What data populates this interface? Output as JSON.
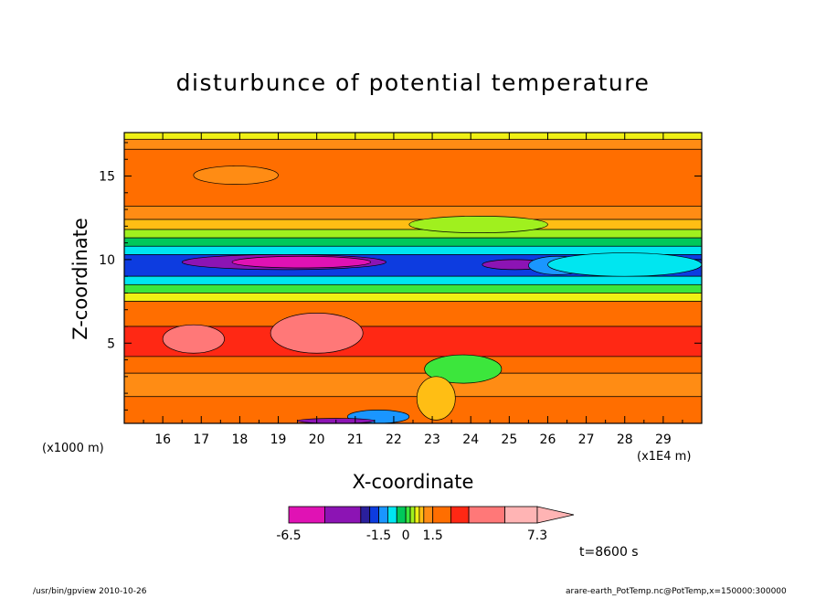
{
  "chart_data": {
    "type": "heatmap",
    "title": "disturbunce of potential temperature",
    "xlabel": "X-coordinate",
    "ylabel": "Z-coordinate",
    "x_unit_label": "(×1E4 m)",
    "z_unit_label": "(×1000 m)",
    "xlim": [
      15.0,
      30.0
    ],
    "ylim": [
      0.2,
      17.6
    ],
    "x_ticks": [
      16,
      17,
      18,
      19,
      20,
      21,
      22,
      23,
      24,
      25,
      26,
      27,
      28,
      29
    ],
    "y_ticks": [
      5,
      10,
      15
    ],
    "colorbar": {
      "labels": [
        "-6.5",
        "-1.5",
        "0",
        "1.5",
        "7.3"
      ],
      "label_values": [
        -6.5,
        -1.5,
        0,
        1.5,
        7.3
      ],
      "boundaries": [
        -6.5,
        -4.5,
        -2.5,
        -2.0,
        -1.5,
        -1.0,
        -0.5,
        0,
        0.25,
        0.5,
        0.75,
        1.0,
        1.5,
        2.5,
        3.5,
        5.5,
        7.3
      ],
      "colors": [
        "#e012b4",
        "#8c14b4",
        "#2a1f9c",
        "#0d3ce0",
        "#1a96ff",
        "#00e6f0",
        "#00c85a",
        "#3ce63c",
        "#a0f01e",
        "#f0f014",
        "#ffbe14",
        "#ff8c14",
        "#ff6e00",
        "#ff2814",
        "#ff7878",
        "#ffb4b4"
      ],
      "extend": "max"
    },
    "layers": [
      {
        "zmin": 17.2,
        "zmax": 17.6,
        "value": 0.6
      },
      {
        "zmin": 16.6,
        "zmax": 17.2,
        "value": 1.2
      },
      {
        "zmin": 13.2,
        "zmax": 16.6,
        "value": 2.0
      },
      {
        "zmin": 12.4,
        "zmax": 13.2,
        "value": 1.4
      },
      {
        "zmin": 11.8,
        "zmax": 12.4,
        "value": 0.9
      },
      {
        "zmin": 11.3,
        "zmax": 11.8,
        "value": 0.3
      },
      {
        "zmin": 10.8,
        "zmax": 11.3,
        "value": -0.3
      },
      {
        "zmin": 10.3,
        "zmax": 10.8,
        "value": -0.7
      },
      {
        "zmin": 9.0,
        "zmax": 10.3,
        "value": -1.8
      },
      {
        "zmin": 8.5,
        "zmax": 9.0,
        "value": -0.7
      },
      {
        "zmin": 8.0,
        "zmax": 8.5,
        "value": 0.1
      },
      {
        "zmin": 7.5,
        "zmax": 8.0,
        "value": 0.6
      },
      {
        "zmin": 6.0,
        "zmax": 7.5,
        "value": 2.0
      },
      {
        "zmin": 4.2,
        "zmax": 6.0,
        "value": 3.0
      },
      {
        "zmin": 3.2,
        "zmax": 4.2,
        "value": 2.0
      },
      {
        "zmin": 1.8,
        "zmax": 3.2,
        "value": 1.2
      },
      {
        "zmin": 0.2,
        "zmax": 1.8,
        "value": 1.8
      }
    ],
    "anomalies": [
      {
        "x": [
          16.5,
          21.8
        ],
        "z": [
          9.4,
          10.3
        ],
        "value": -4.0
      },
      {
        "x": [
          17.8,
          21.4
        ],
        "z": [
          9.5,
          10.2
        ],
        "value": -5.0
      },
      {
        "x": [
          24.3,
          26.0
        ],
        "z": [
          9.4,
          10.0
        ],
        "value": -3.0
      },
      {
        "x": [
          25.5,
          27.0
        ],
        "z": [
          9.1,
          10.2
        ],
        "value": -1.2
      },
      {
        "x": [
          26.0,
          30.0
        ],
        "z": [
          9.0,
          10.4
        ],
        "value": -0.7
      },
      {
        "x": [
          16.0,
          17.6
        ],
        "z": [
          4.4,
          6.1
        ],
        "value": 4.0
      },
      {
        "x": [
          18.8,
          21.2
        ],
        "z": [
          4.4,
          6.8
        ],
        "value": 4.0
      },
      {
        "x": [
          22.8,
          24.8
        ],
        "z": [
          2.6,
          4.3
        ],
        "value": 0.1
      },
      {
        "x": [
          22.6,
          23.6
        ],
        "z": [
          0.4,
          3.0
        ],
        "value": 0.8
      },
      {
        "x": [
          20.8,
          22.4
        ],
        "z": [
          0.2,
          1.0
        ],
        "value": -1.2
      },
      {
        "x": [
          19.5,
          21.5
        ],
        "z": [
          0.2,
          0.5
        ],
        "value": -4.0
      },
      {
        "x": [
          16.8,
          19.0
        ],
        "z": [
          14.5,
          15.6
        ],
        "value": 1.4
      },
      {
        "x": [
          22.4,
          26.0
        ],
        "z": [
          11.6,
          12.6
        ],
        "value": 0.3
      }
    ]
  },
  "labels": {
    "z_unit": "(x1000 m)",
    "x_unit": "(x1E4 m)",
    "time": "t=8600 s",
    "footer_left": "/usr/bin/gpview   2010-10-26",
    "footer_right": "arare-earth_PotTemp.nc@PotTemp,x=150000:300000"
  }
}
